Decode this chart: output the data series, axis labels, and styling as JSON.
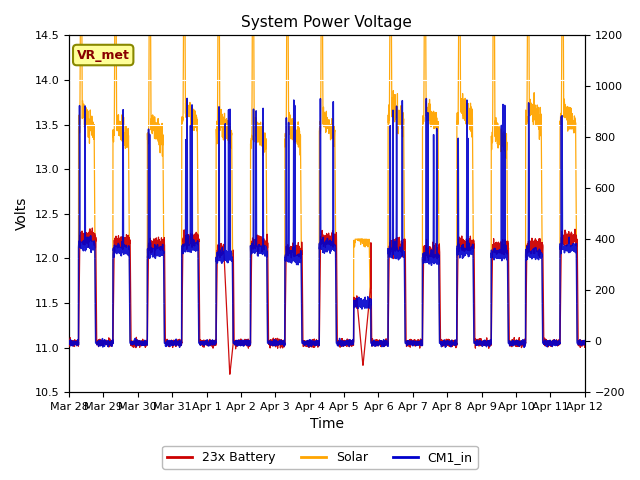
{
  "title": "System Power Voltage",
  "xlabel": "Time",
  "ylabel": "Volts",
  "ylim_left": [
    10.5,
    14.5
  ],
  "ylim_right": [
    -200,
    1200
  ],
  "plot_bg_color": "#e8e8e8",
  "line_colors": {
    "battery": "#cc0000",
    "solar": "#ffa500",
    "cm1": "#0000cc"
  },
  "legend_labels": [
    "23x Battery",
    "Solar",
    "CM1_in"
  ],
  "annotation_box": "VR_met",
  "annotation_box_color": "#ffff99",
  "annotation_box_edge": "#888800",
  "xtick_labels": [
    "Mar 28",
    "Mar 29",
    "Mar 30",
    "Mar 31",
    "Apr 1",
    "Apr 2",
    "Apr 3",
    "Apr 4",
    "Apr 5",
    "Apr 6",
    "Apr 7",
    "Apr 8",
    "Apr 9",
    "Apr 10",
    "Apr 11",
    "Apr 12"
  ],
  "yticks_left": [
    10.5,
    11.0,
    11.5,
    12.0,
    12.5,
    13.0,
    13.5,
    14.0,
    14.5
  ],
  "yticks_right": [
    -200,
    0,
    200,
    400,
    600,
    800,
    1000,
    1200
  ],
  "num_days": 15,
  "pts_per_day": 288
}
